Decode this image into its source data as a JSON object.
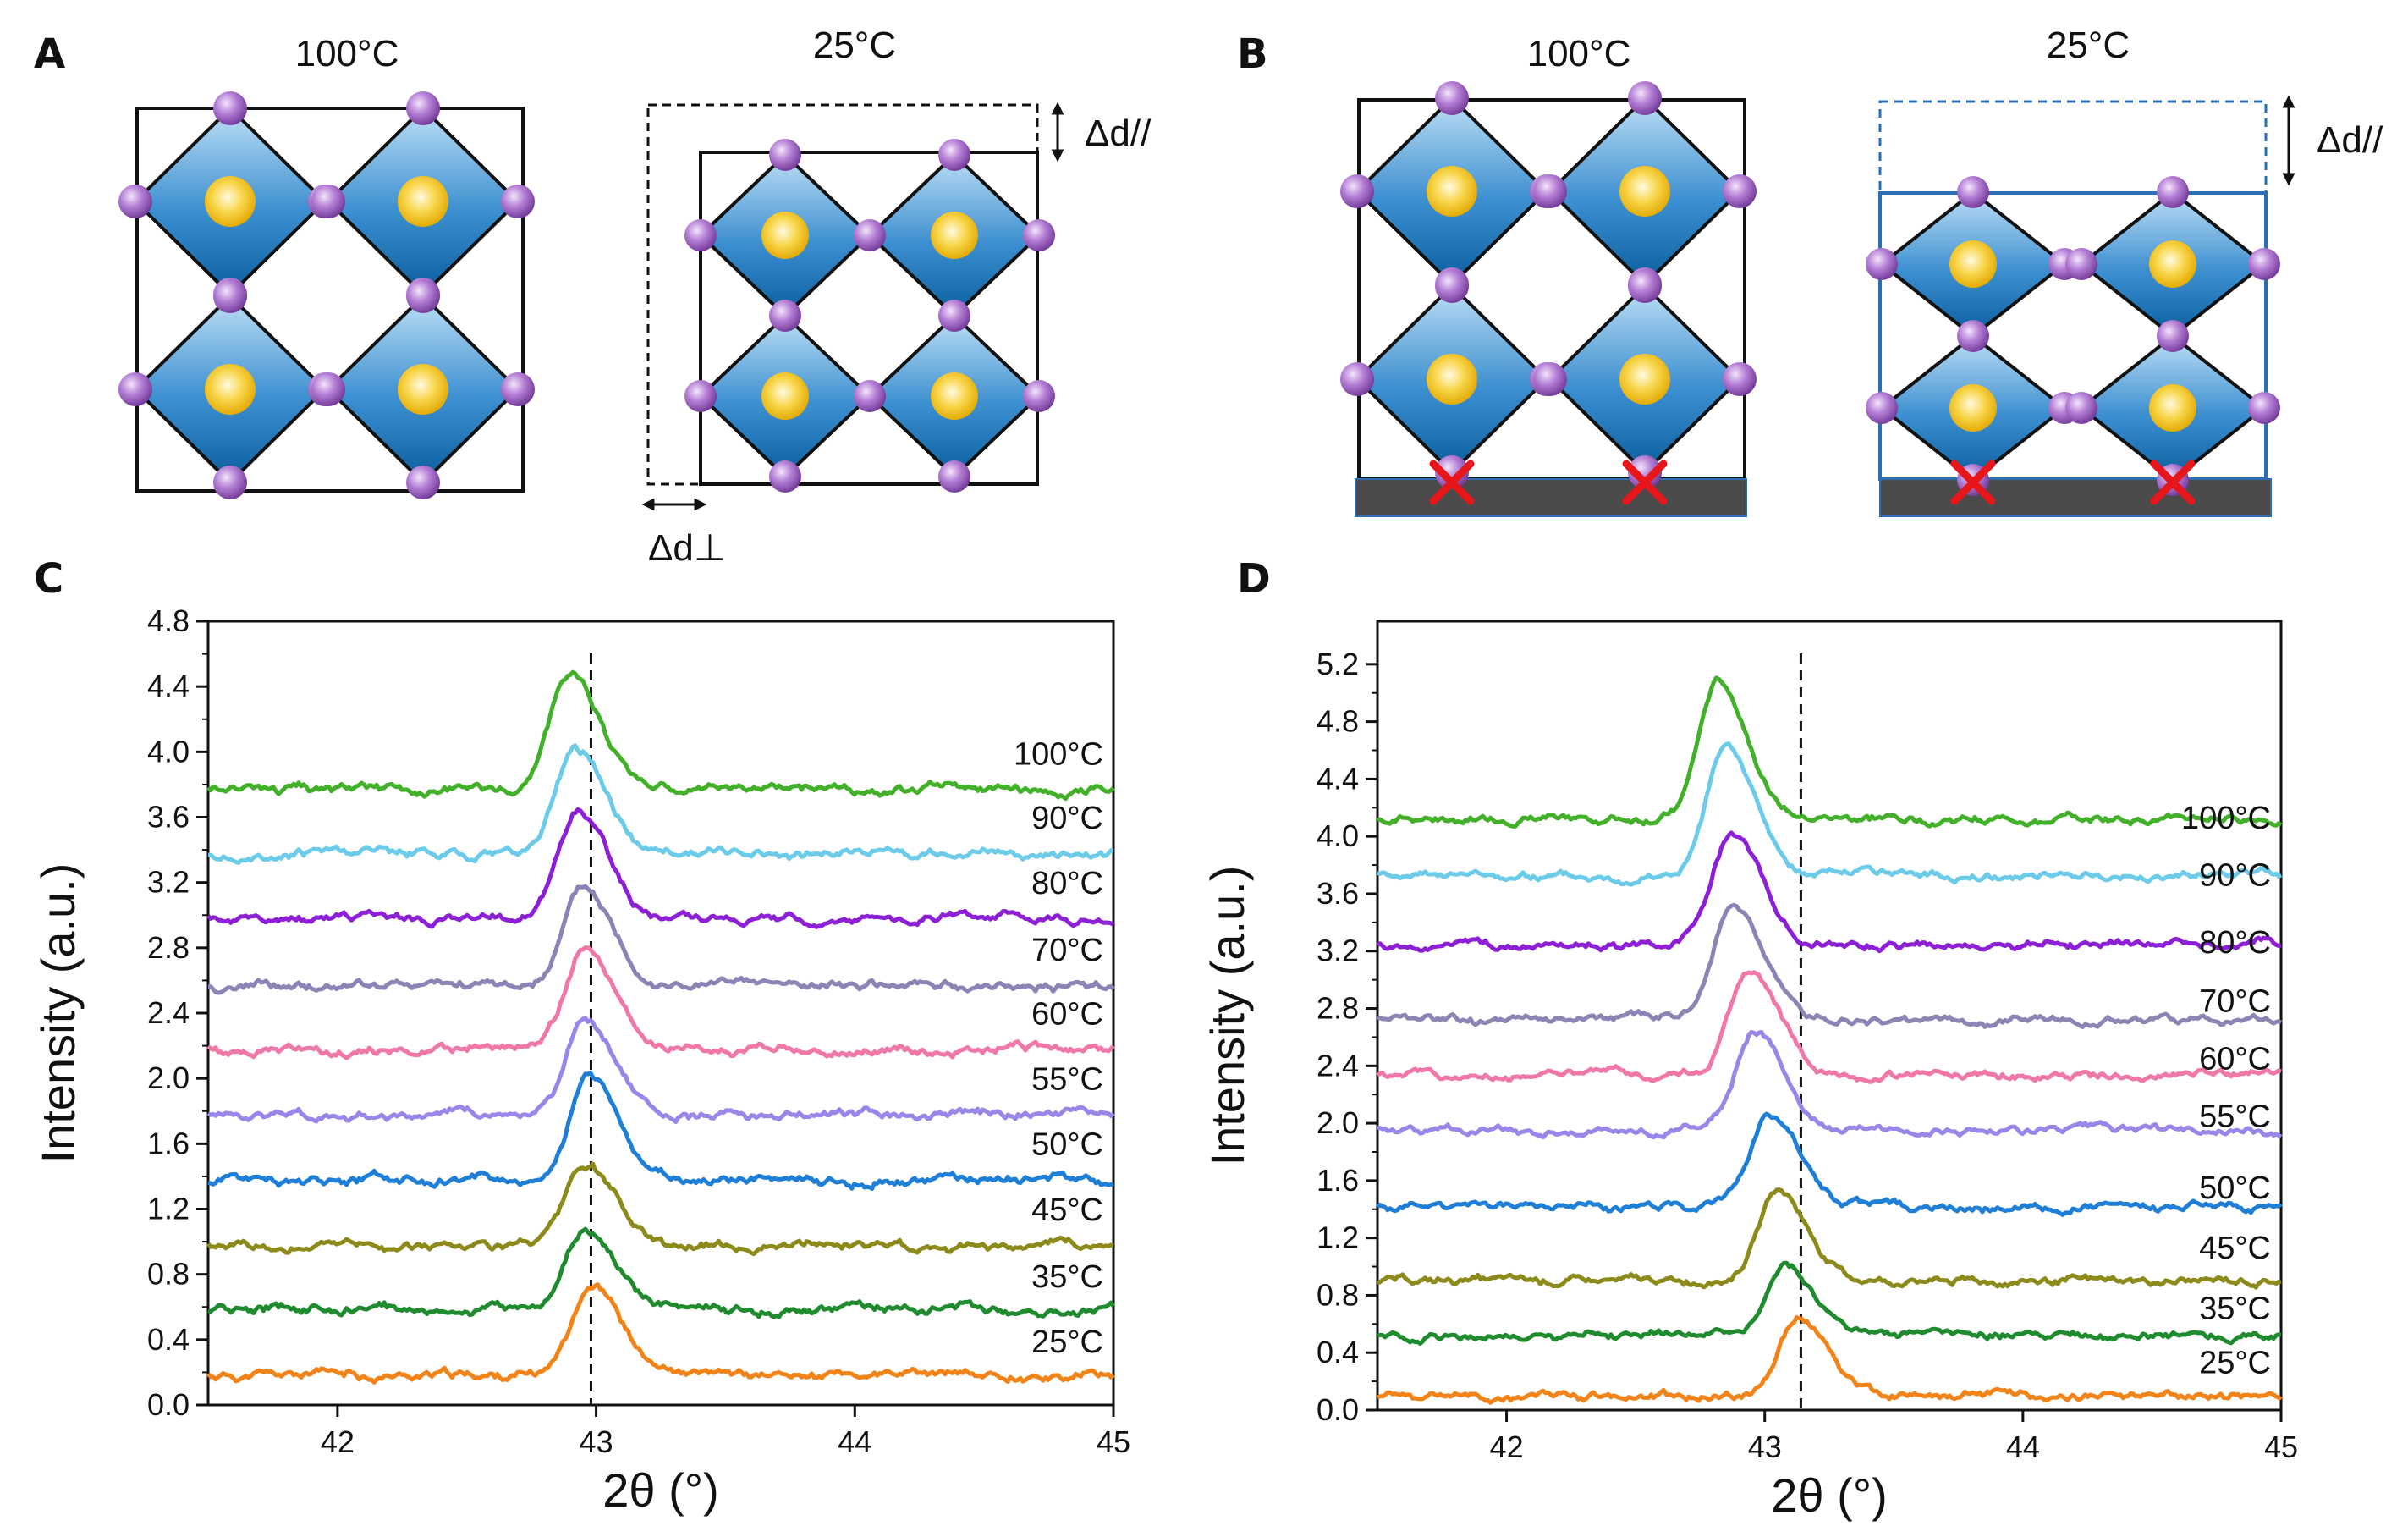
{
  "panels": {
    "A": {
      "letter": "A",
      "left_title": "100°C",
      "right_title": "25°C",
      "delta_parallel": "Δd//",
      "delta_perp": "Δd⊥"
    },
    "B": {
      "letter": "B",
      "left_title": "100°C",
      "right_title": "25°C",
      "delta_parallel": "Δd//"
    },
    "C": {
      "letter": "C"
    },
    "D": {
      "letter": "D"
    }
  },
  "colors": {
    "octahedron_top": "#bfe0f6",
    "octahedron_bottom": "#0b5e9e",
    "atom_purple": "#9a5cc0",
    "cation_yellow": "#f5c518",
    "substrate": "#4a4a4a",
    "cross_red": "#e6161a",
    "dashed_outline_B": "#2a6fb5"
  },
  "chart_data": [
    {
      "panel": "C",
      "type": "line",
      "xlabel": "2θ (°)",
      "ylabel": "Intensity (a.u.)",
      "xlim": [
        41.5,
        45
      ],
      "ylim": [
        0,
        4.8
      ],
      "xticks": [
        42,
        43,
        44,
        45
      ],
      "yticks": [
        0.0,
        0.4,
        0.8,
        1.2,
        1.6,
        2.0,
        2.4,
        2.8,
        3.2,
        3.6,
        4.0,
        4.4,
        4.8
      ],
      "reference_line_x": 42.98,
      "series": [
        {
          "name": "25°C",
          "color": "#f28318",
          "baseline": 0.18,
          "peak_x": 42.98,
          "peak_height": 0.57,
          "label_y": 0.29
        },
        {
          "name": "35°C",
          "color": "#1f8b2e",
          "baseline": 0.59,
          "peak_x": 42.96,
          "peak_height": 0.48,
          "label_y": 0.69
        },
        {
          "name": "45°C",
          "color": "#8c8a1a",
          "baseline": 0.98,
          "peak_x": 42.96,
          "peak_height": 0.47,
          "label_y": 1.1
        },
        {
          "name": "50°C",
          "color": "#1f7fd6",
          "baseline": 1.38,
          "peak_x": 42.97,
          "peak_height": 0.62,
          "label_y": 1.5
        },
        {
          "name": "55°C",
          "color": "#9a86e8",
          "baseline": 1.78,
          "peak_x": 42.96,
          "peak_height": 0.58,
          "label_y": 1.9
        },
        {
          "name": "60°C",
          "color": "#ef78a8",
          "baseline": 2.18,
          "peak_x": 42.95,
          "peak_height": 0.6,
          "label_y": 2.3
        },
        {
          "name": "70°C",
          "color": "#8c84b4",
          "baseline": 2.57,
          "peak_x": 42.95,
          "peak_height": 0.6,
          "label_y": 2.69
        },
        {
          "name": "80°C",
          "color": "#8d1fd6",
          "baseline": 2.98,
          "peak_x": 42.93,
          "peak_height": 0.64,
          "label_y": 3.1
        },
        {
          "name": "90°C",
          "color": "#6ccbe8",
          "baseline": 3.38,
          "peak_x": 42.92,
          "peak_height": 0.64,
          "label_y": 3.5
        },
        {
          "name": "100°C",
          "color": "#43b02a",
          "baseline": 3.77,
          "peak_x": 42.9,
          "peak_height": 0.72,
          "label_y": 3.89
        }
      ]
    },
    {
      "panel": "D",
      "type": "line",
      "xlabel": "2θ (°)",
      "ylabel": "Intensity (a.u.)",
      "xlim": [
        41.5,
        45
      ],
      "ylim": [
        0,
        5.2
      ],
      "ytop": 5.5,
      "xticks": [
        42,
        43,
        44,
        45
      ],
      "yticks": [
        0.0,
        0.4,
        0.8,
        1.2,
        1.6,
        2.0,
        2.4,
        2.8,
        3.2,
        3.6,
        4.0,
        4.4,
        4.8,
        5.2
      ],
      "reference_line_x": 43.14,
      "series": [
        {
          "name": "25°C",
          "color": "#f28318",
          "baseline": 0.1,
          "peak_x": 43.13,
          "peak_height": 0.55,
          "label_y": 0.22
        },
        {
          "name": "35°C",
          "color": "#1f8b2e",
          "baseline": 0.52,
          "peak_x": 43.08,
          "peak_height": 0.5,
          "label_y": 0.6
        },
        {
          "name": "45°C",
          "color": "#8c8a1a",
          "baseline": 0.9,
          "peak_x": 43.05,
          "peak_height": 0.62,
          "label_y": 1.02
        },
        {
          "name": "50°C",
          "color": "#1f7fd6",
          "baseline": 1.42,
          "peak_x": 43.02,
          "peak_height": 0.64,
          "label_y": 1.44
        },
        {
          "name": "55°C",
          "color": "#9a86e8",
          "baseline": 1.95,
          "peak_x": 42.96,
          "peak_height": 0.7,
          "label_y": 1.94
        },
        {
          "name": "60°C",
          "color": "#ef78a8",
          "baseline": 2.34,
          "peak_x": 42.94,
          "peak_height": 0.72,
          "label_y": 2.34
        },
        {
          "name": "70°C",
          "color": "#8c84b4",
          "baseline": 2.72,
          "peak_x": 42.88,
          "peak_height": 0.8,
          "label_y": 2.74
        },
        {
          "name": "80°C",
          "color": "#8d1fd6",
          "baseline": 3.25,
          "peak_x": 42.87,
          "peak_height": 0.78,
          "label_y": 3.15
        },
        {
          "name": "90°C",
          "color": "#6ccbe8",
          "baseline": 3.73,
          "peak_x": 42.85,
          "peak_height": 0.87,
          "label_y": 3.62
        },
        {
          "name": "100°C",
          "color": "#43b02a",
          "baseline": 4.12,
          "peak_x": 42.82,
          "peak_height": 0.95,
          "label_y": 4.02
        }
      ]
    }
  ]
}
